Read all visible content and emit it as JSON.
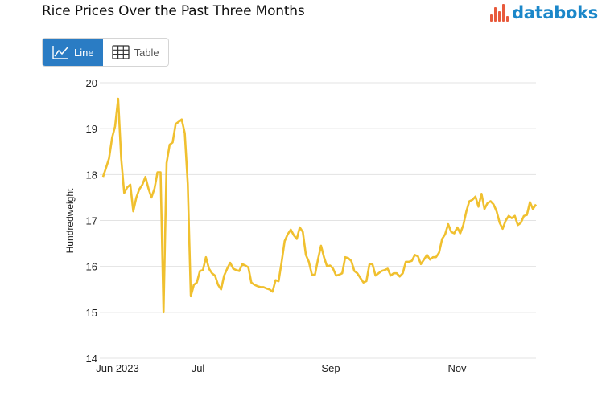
{
  "header": {
    "title": "Rice Prices Over the Past Three Months"
  },
  "logo": {
    "text": "databoks",
    "text_color": "#1b87c9",
    "mark_color": "#e85a3c",
    "icon": "bar-mark-icon"
  },
  "view_toggle": {
    "line_label": "Line",
    "line_icon": "line-chart-icon",
    "table_label": "Table",
    "table_icon": "table-grid-icon",
    "active": "Line",
    "active_color": "#2a7cc4"
  },
  "chart_data": {
    "type": "line",
    "title": "Rice Prices Over the Past Three Months",
    "xlabel": "",
    "ylabel": "Hundredweight",
    "ylim": [
      14,
      20
    ],
    "yticks": [
      14,
      15,
      16,
      17,
      18,
      19,
      20
    ],
    "xticks": [
      {
        "label": "Jun 2023",
        "date": "2023-06-01"
      },
      {
        "label": "Jul",
        "date": "2023-07-01"
      },
      {
        "label": "Sep",
        "date": "2023-09-01"
      },
      {
        "label": "Nov",
        "date": "2023-11-01"
      }
    ],
    "grid": true,
    "legend": "none",
    "line_color": "#f0c02f",
    "series": [
      {
        "values": [
          17.95,
          18.15,
          18.35,
          18.8,
          19.05,
          19.65,
          18.35,
          17.6,
          17.72,
          17.78,
          17.2,
          17.5,
          17.68,
          17.78,
          17.95,
          17.7,
          17.5,
          17.7,
          18.05,
          18.05,
          15.0,
          18.25,
          18.65,
          18.7,
          19.1,
          19.15,
          19.2,
          18.9,
          17.8,
          15.35,
          15.6,
          15.65,
          15.9,
          15.92,
          16.2,
          15.95,
          15.85,
          15.8,
          15.6,
          15.5,
          15.8,
          15.95,
          16.08,
          15.95,
          15.92,
          15.9,
          16.05,
          16.02,
          15.98,
          15.65,
          15.6,
          15.57,
          15.55,
          15.55,
          15.52,
          15.5,
          15.45,
          15.7,
          15.68,
          16.1,
          16.55,
          16.7,
          16.8,
          16.68,
          16.6,
          16.85,
          16.75,
          16.25,
          16.1,
          15.82,
          15.82,
          16.15,
          16.45,
          16.2,
          16.0,
          16.02,
          15.95,
          15.8,
          15.82,
          15.85,
          16.2,
          16.18,
          16.12,
          15.9,
          15.85,
          15.75,
          15.65,
          15.68,
          16.05,
          16.05,
          15.8,
          15.85,
          15.9,
          15.92,
          15.95,
          15.8,
          15.85,
          15.85,
          15.78,
          15.85,
          16.1,
          16.1,
          16.12,
          16.25,
          16.22,
          16.05,
          16.15,
          16.25,
          16.15,
          16.2,
          16.2,
          16.3,
          16.6,
          16.7,
          16.92,
          16.75,
          16.72,
          16.85,
          16.72,
          16.9,
          17.2,
          17.42,
          17.45,
          17.52,
          17.3,
          17.58,
          17.25,
          17.38,
          17.42,
          17.35,
          17.2,
          16.95,
          16.82,
          17.0,
          17.1,
          17.05,
          17.1,
          16.9,
          16.95,
          17.1,
          17.12,
          17.4,
          17.25,
          17.35
        ]
      }
    ]
  }
}
